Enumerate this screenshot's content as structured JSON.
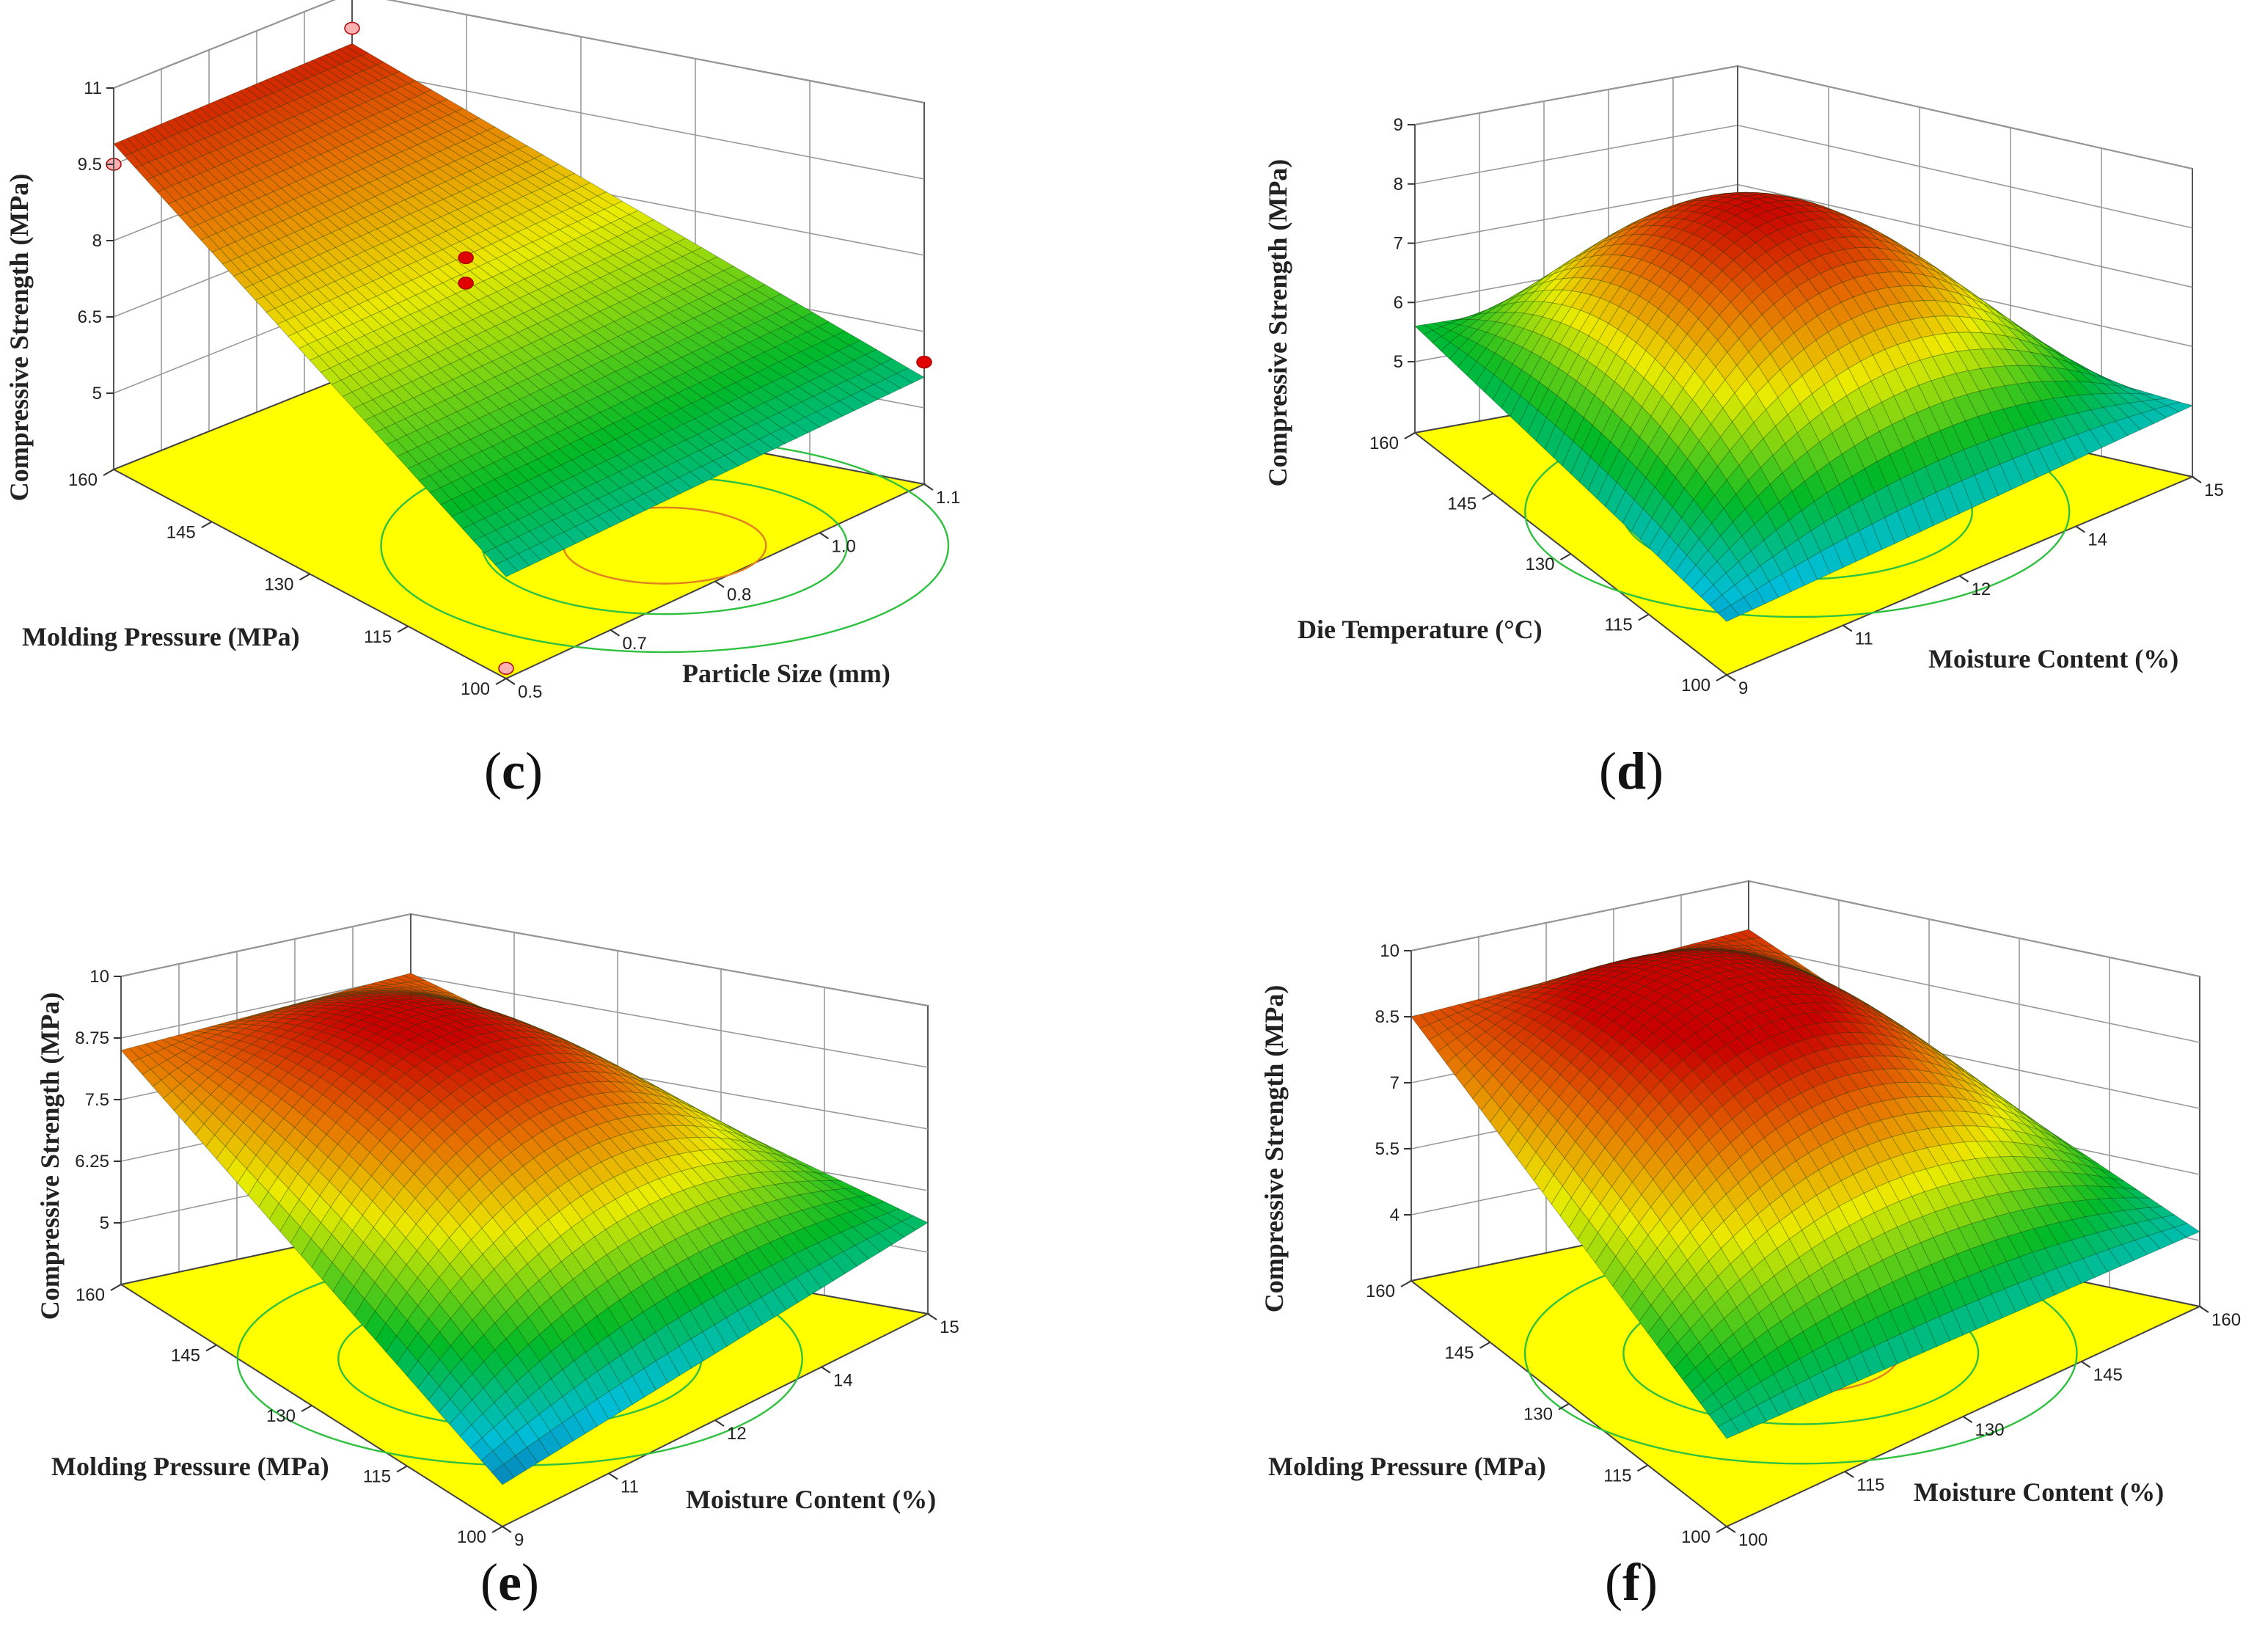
{
  "chart_data": [
    {
      "type": "surface3d",
      "caption": "c",
      "zlabel": "Compressive Strength (MPa)",
      "xlabel": "Particle Size (mm)",
      "ylabel": "Molding Pressure (MPa)",
      "x_ticks": [
        "0.5",
        "0.7",
        "0.8",
        "1.0",
        "1.1"
      ],
      "y_ticks": [
        "100",
        "115",
        "130",
        "145",
        "160"
      ],
      "z_ticks": [
        "5",
        "6.5",
        "8",
        "9.5",
        "11"
      ],
      "zlim": [
        3.5,
        11
      ],
      "corner_values": {
        "left": 9.9,
        "back": 10.0,
        "right": 5.6,
        "front": 5.5
      },
      "curvature": 0,
      "design_points": [
        {
          "label": "high-P, small-size",
          "value": 9.5,
          "color": "#ffb0b0"
        },
        {
          "label": "high-P, large-size",
          "value": 10.3,
          "color": "#ffb0b0"
        },
        {
          "label": "low-P, large-size",
          "value": 5.9,
          "color": "#e00000"
        },
        {
          "label": "low-P, small-size",
          "value": 3.7,
          "color": "#ffb0b0"
        },
        {
          "label": "center-1",
          "value": 8.0,
          "color": "#e00000"
        },
        {
          "label": "center-2",
          "value": 7.5,
          "color": "#e00000"
        }
      ]
    },
    {
      "type": "surface3d",
      "caption": "d",
      "zlabel": "Compressive Strength (MPa)",
      "xlabel": "Moisture Content (%)",
      "ylabel": "Die Temperature (°C)",
      "x_ticks": [
        "9",
        "11",
        "12",
        "14",
        "15"
      ],
      "y_ticks": [
        "100",
        "115",
        "130",
        "145",
        "160"
      ],
      "z_ticks": [
        "5",
        "6",
        "7",
        "8",
        "9"
      ],
      "zlim": [
        3.8,
        9
      ],
      "corner_values": {
        "left": 5.6,
        "back": 5.5,
        "right": 5.0,
        "front": 4.7
      },
      "curvature": 3.3
    },
    {
      "type": "surface3d",
      "caption": "e",
      "zlabel": "Compressive Strength (MPa)",
      "xlabel": "Moisture Content (%)",
      "ylabel": "Molding Pressure (MPa)",
      "x_ticks": [
        "9",
        "11",
        "12",
        "14",
        "15"
      ],
      "y_ticks": [
        "100",
        "115",
        "130",
        "145",
        "160"
      ],
      "z_ticks": [
        "5",
        "6.25",
        "7.5",
        "8.75",
        "10"
      ],
      "zlim": [
        3.75,
        10
      ],
      "corner_values": {
        "left": 8.5,
        "back": 8.8,
        "right": 5.6,
        "front": 4.6
      },
      "curvature": 2.3
    },
    {
      "type": "surface3d",
      "caption": "f",
      "zlabel": "Compressive Strength (MPa)",
      "xlabel": "Moisture Content (%)",
      "ylabel": "Molding Pressure (MPa)",
      "x_ticks": [
        "100",
        "115",
        "130",
        "145",
        "160"
      ],
      "y_ticks": [
        "100",
        "115",
        "130",
        "145",
        "160"
      ],
      "z_ticks": [
        "4",
        "5.5",
        "7",
        "8.5",
        "10"
      ],
      "zlim": [
        2.5,
        10
      ],
      "corner_values": {
        "left": 8.5,
        "back": 8.9,
        "right": 4.2,
        "front": 4.5
      },
      "curvature": 3.0
    }
  ]
}
